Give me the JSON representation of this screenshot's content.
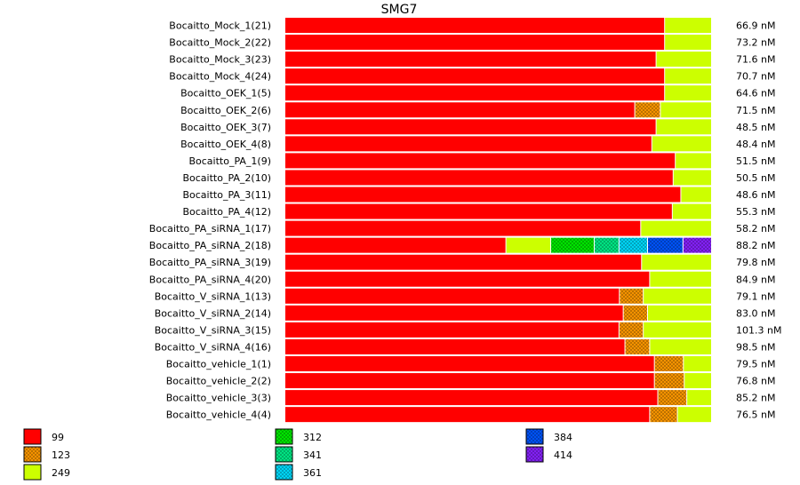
{
  "chart_data": {
    "type": "bar",
    "stacked": true,
    "orientation": "horizontal",
    "normalized": true,
    "title": "SMG7",
    "value_unit": "nM",
    "legend_entries": [
      {
        "key": "99",
        "color": "#ff0000",
        "pattern": "solid"
      },
      {
        "key": "123",
        "color": "#ff9900",
        "pattern": "hatch"
      },
      {
        "key": "249",
        "color": "#ccff00",
        "pattern": "solid"
      },
      {
        "key": "312",
        "color": "#00ee00",
        "pattern": "hatch"
      },
      {
        "key": "341",
        "color": "#00ee88",
        "pattern": "hatch"
      },
      {
        "key": "361",
        "color": "#00ddff",
        "pattern": "hatch"
      },
      {
        "key": "384",
        "color": "#0055ff",
        "pattern": "hatch"
      },
      {
        "key": "414",
        "color": "#8822ff",
        "pattern": "hatch"
      }
    ],
    "legend_placement": "bottom",
    "rows": [
      {
        "label": "Bocaitto_Mock_1(21)",
        "total": "66.9 nM",
        "fractions": {
          "99": 0.89,
          "249": 0.11
        }
      },
      {
        "label": "Bocaitto_Mock_2(22)",
        "total": "73.2 nM",
        "fractions": {
          "99": 0.89,
          "249": 0.11
        }
      },
      {
        "label": "Bocaitto_Mock_3(23)",
        "total": "71.6 nM",
        "fractions": {
          "99": 0.87,
          "249": 0.13
        }
      },
      {
        "label": "Bocaitto_Mock_4(24)",
        "total": "70.7 nM",
        "fractions": {
          "99": 0.89,
          "249": 0.11
        }
      },
      {
        "label": "Bocaitto_OEK_1(5)",
        "total": "64.6 nM",
        "fractions": {
          "99": 0.89,
          "249": 0.11
        }
      },
      {
        "label": "Bocaitto_OEK_2(6)",
        "total": "71.5 nM",
        "fractions": {
          "99": 0.82,
          "123": 0.06,
          "249": 0.12
        }
      },
      {
        "label": "Bocaitto_OEK_3(7)",
        "total": "48.5 nM",
        "fractions": {
          "99": 0.87,
          "249": 0.13
        }
      },
      {
        "label": "Bocaitto_OEK_4(8)",
        "total": "48.4 nM",
        "fractions": {
          "99": 0.86,
          "249": 0.14
        }
      },
      {
        "label": "Bocaitto_PA_1(9)",
        "total": "51.5 nM",
        "fractions": {
          "99": 0.915,
          "249": 0.085
        }
      },
      {
        "label": "Bocaitto_PA_2(10)",
        "total": "50.5 nM",
        "fractions": {
          "99": 0.91,
          "249": 0.09
        }
      },
      {
        "label": "Bocaitto_PA_3(11)",
        "total": "48.6 nM",
        "fractions": {
          "99": 0.928,
          "249": 0.072
        }
      },
      {
        "label": "Bocaitto_PA_4(12)",
        "total": "55.3 nM",
        "fractions": {
          "99": 0.908,
          "249": 0.092
        }
      },
      {
        "label": "Bocaitto_PA_siRNA_1(17)",
        "total": "58.2 nM",
        "fractions": {
          "99": 0.834,
          "249": 0.166
        }
      },
      {
        "label": "Bocaitto_PA_siRNA_2(18)",
        "total": "88.2 nM",
        "fractions": {
          "99": 0.518,
          "249": 0.105,
          "312": 0.102,
          "341": 0.058,
          "361": 0.067,
          "384": 0.083,
          "414": 0.067
        }
      },
      {
        "label": "Bocaitto_PA_siRNA_3(19)",
        "total": "79.8 nM",
        "fractions": {
          "99": 0.836,
          "249": 0.164
        }
      },
      {
        "label": "Bocaitto_PA_siRNA_4(20)",
        "total": "84.9 nM",
        "fractions": {
          "99": 0.855,
          "249": 0.145
        }
      },
      {
        "label": "Bocaitto_V_siRNA_1(13)",
        "total": "79.1 nM",
        "fractions": {
          "99": 0.784,
          "123": 0.056,
          "249": 0.16
        }
      },
      {
        "label": "Bocaitto_V_siRNA_2(14)",
        "total": "83.0 nM",
        "fractions": {
          "99": 0.793,
          "123": 0.057,
          "249": 0.15
        }
      },
      {
        "label": "Bocaitto_V_siRNA_3(15)",
        "total": "101.3 nM",
        "fractions": {
          "99": 0.783,
          "123": 0.057,
          "249": 0.16
        }
      },
      {
        "label": "Bocaitto_V_siRNA_4(16)",
        "total": "98.5 nM",
        "fractions": {
          "99": 0.797,
          "123": 0.058,
          "249": 0.145
        }
      },
      {
        "label": "Bocaitto_vehicle_1(1)",
        "total": "79.5 nM",
        "fractions": {
          "99": 0.866,
          "123": 0.068,
          "249": 0.066
        }
      },
      {
        "label": "Bocaitto_vehicle_2(2)",
        "total": "76.8 nM",
        "fractions": {
          "99": 0.866,
          "123": 0.07,
          "249": 0.064
        }
      },
      {
        "label": "Bocaitto_vehicle_3(3)",
        "total": "85.2 nM",
        "fractions": {
          "99": 0.874,
          "123": 0.068,
          "249": 0.058
        }
      },
      {
        "label": "Bocaitto_vehicle_4(4)",
        "total": "76.5 nM",
        "fractions": {
          "99": 0.855,
          "123": 0.065,
          "249": 0.08
        }
      }
    ]
  }
}
